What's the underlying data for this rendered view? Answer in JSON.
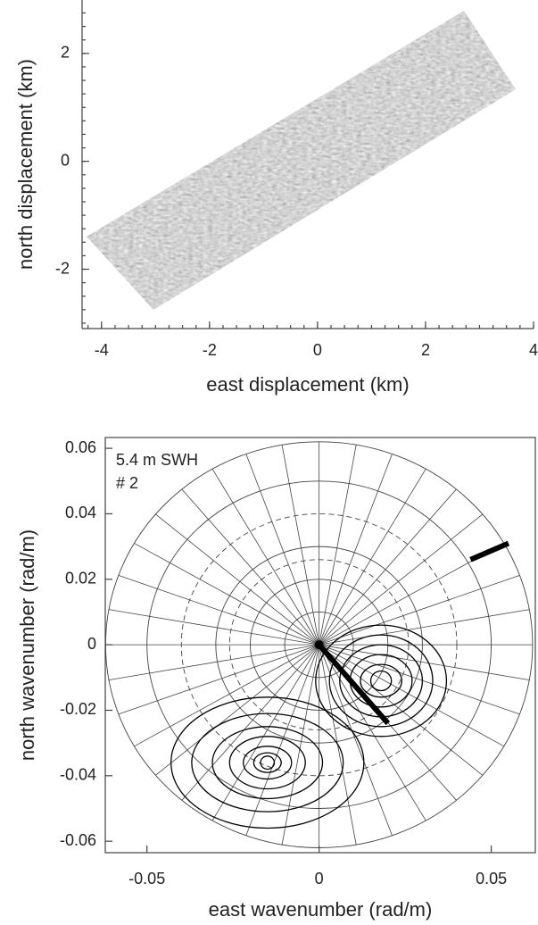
{
  "chart_data": [
    {
      "type": "image",
      "x_label": "east displacement (km)",
      "y_label": "north displacement (km)",
      "xlim": [
        -4.36,
        4
      ],
      "ylim": [
        -3.1,
        2.99
      ],
      "xticks": [
        -4,
        -2,
        0,
        2,
        4
      ],
      "yticks": [
        -2,
        0,
        2
      ],
      "minor_step": 0.25
    },
    {
      "type": "polar_contour",
      "x_label": "east wavenumber (rad/m)",
      "y_label": "north wavenumber (rad/m)",
      "annotations": [
        "5.4 m SWH",
        "# 2"
      ],
      "xlim": [
        -0.0621,
        0.0628
      ],
      "ylim": [
        -0.0635,
        0.0633
      ],
      "xticks": [
        -0.05,
        0,
        0.05
      ],
      "yticks": [
        -0.06,
        -0.04,
        -0.02,
        0,
        0.02,
        0.04,
        0.06
      ],
      "polar_grid": {
        "rings": [
          0.01,
          0.02,
          0.03,
          0.05,
          0.062
        ],
        "dashed_rings": [
          0.026,
          0.04
        ],
        "spoke_step_deg": 10
      },
      "contours": [
        {
          "x": 0.018,
          "y": -0.011,
          "rx": [
            0.003,
            0.006,
            0.009,
            0.012,
            0.015,
            0.019
          ],
          "ry": [
            0.003,
            0.005,
            0.008,
            0.011,
            0.014,
            0.017
          ]
        },
        {
          "x": -0.015,
          "y": -0.036,
          "rx": [
            0.002,
            0.004,
            0.007,
            0.011,
            0.016,
            0.022,
            0.028
          ],
          "ry": [
            0.002,
            0.003,
            0.005,
            0.008,
            0.011,
            0.015,
            0.02
          ]
        }
      ],
      "lines": [
        {
          "x": [
            0,
            0.02
          ],
          "y": [
            0,
            -0.024
          ]
        },
        {
          "x": [
            0.044,
            0.055
          ],
          "y": [
            0.026,
            0.031
          ]
        }
      ],
      "color": "#000000"
    }
  ]
}
